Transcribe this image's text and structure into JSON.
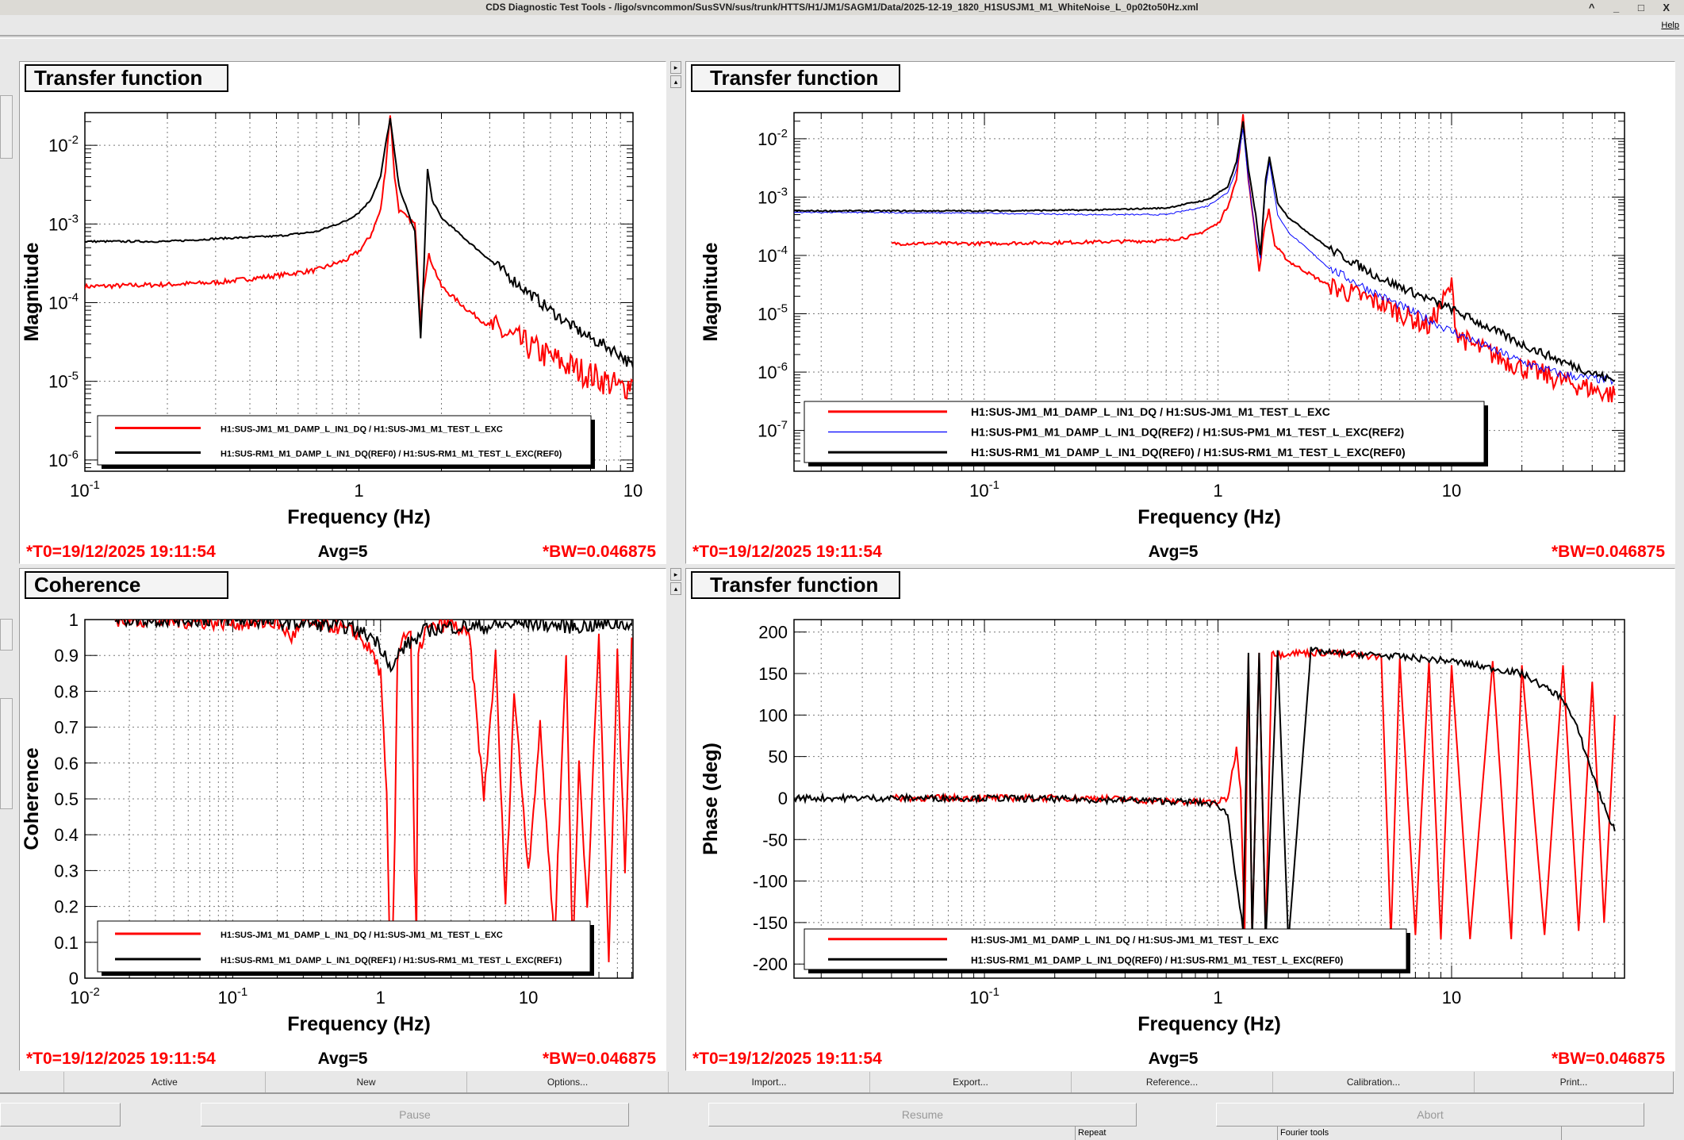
{
  "window": {
    "title": "CDS Diagnostic Test Tools - /ligo/svncommon/SusSVN/sus/trunk/HTTS/H1/JM1/SAGM1/Data/2025-12-19_1820_H1SUSJM1_M1_WhiteNoise_L_0p02to50Hz.xml",
    "controls": "^ _ □ X"
  },
  "menu": {
    "help": "Help"
  },
  "panels": [
    {
      "title": "Transfer function",
      "t0": "*T0=19/12/2025 19:11:54",
      "avg": "Avg=5",
      "bw": "*BW=0.046875"
    },
    {
      "title": "Transfer function",
      "t0": "*T0=19/12/2025 19:11:54",
      "avg": "Avg=5",
      "bw": "*BW=0.046875"
    },
    {
      "title": "Coherence",
      "t0": "*T0=19/12/2025 19:11:54",
      "avg": "Avg=5",
      "bw": "*BW=0.046875"
    },
    {
      "title": "Transfer function",
      "t0": "*T0=19/12/2025 19:11:54",
      "avg": "Avg=5",
      "bw": "*BW=0.046875"
    }
  ],
  "buttons": [
    "Active",
    "New",
    "Options...",
    "Import...",
    "Export...",
    "Reference...",
    "Calibration...",
    "Print..."
  ],
  "run_buttons": [
    "Pause",
    "Resume",
    "Abort"
  ],
  "status": [
    "Repeat",
    "Fourier tools"
  ],
  "chart_data": [
    {
      "type": "line",
      "xlabel": "Frequency (Hz)",
      "ylabel": "Magnitude",
      "xlog": true,
      "ylog": true,
      "xlim": [
        0.1,
        10
      ],
      "ylim": [
        7.2e-07,
        0.026
      ],
      "xticks": [
        0.1,
        1,
        10
      ],
      "yticks": [
        1e-06,
        1e-05,
        0.0001,
        0.001,
        0.01
      ],
      "series": [
        {
          "name": "H1:SUS-JM1_M1_DAMP_L_IN1_DQ / H1:SUS-JM1_M1_TEST_L_EXC",
          "color": "#ff0000",
          "x": [
            0.1,
            0.2,
            0.3,
            0.5,
            0.7,
            0.9,
            1.0,
            1.1,
            1.2,
            1.25,
            1.3,
            1.35,
            1.4,
            1.5,
            1.6,
            1.68,
            1.72,
            1.8,
            2,
            2.5,
            3,
            4,
            5,
            6,
            7,
            8,
            9,
            10
          ],
          "y": [
            0.00016,
            0.00017,
            0.00018,
            0.00022,
            0.00026,
            0.00035,
            0.00045,
            0.0007,
            0.0015,
            0.005,
            0.025,
            0.004,
            0.0015,
            0.0012,
            0.001,
            6e-05,
            0.00015,
            0.0004,
            0.00016,
            8e-05,
            5e-05,
            3e-05,
            2e-05,
            1.5e-05,
            1.2e-05,
            1e-05,
            8e-06,
            1e-05
          ]
        },
        {
          "name": "H1:SUS-RM1_M1_DAMP_L_IN1_DQ(REF0) / H1:SUS-RM1_M1_TEST_L_EXC(REF0)",
          "color": "#000000",
          "x": [
            0.1,
            0.2,
            0.3,
            0.5,
            0.7,
            0.9,
            1.0,
            1.1,
            1.2,
            1.25,
            1.3,
            1.35,
            1.4,
            1.5,
            1.6,
            1.68,
            1.72,
            1.78,
            1.85,
            2,
            2.5,
            3,
            4,
            5,
            6,
            7,
            8,
            9,
            10
          ],
          "y": [
            0.0006,
            0.0006,
            0.00065,
            0.0007,
            0.0008,
            0.0011,
            0.0014,
            0.002,
            0.004,
            0.01,
            0.022,
            0.008,
            0.003,
            0.0015,
            0.0008,
            3.5e-05,
            0.0002,
            0.005,
            0.002,
            0.0012,
            0.0006,
            0.00035,
            0.00015,
            8e-05,
            5e-05,
            3.5e-05,
            2.8e-05,
            2.2e-05,
            1.5e-05
          ]
        }
      ],
      "legend": "bottom"
    },
    {
      "type": "line",
      "xlabel": "Frequency (Hz)",
      "ylabel": "Magnitude",
      "xlog": true,
      "ylog": true,
      "xlim": [
        0.0153,
        55
      ],
      "ylim": [
        2e-08,
        0.028
      ],
      "xticks": [
        0.1,
        1,
        10
      ],
      "yticks": [
        1e-07,
        1e-06,
        1e-05,
        0.0001,
        0.001,
        0.01
      ],
      "series": [
        {
          "name": "H1:SUS-JM1_M1_DAMP_L_IN1_DQ / H1:SUS-JM1_M1_TEST_L_EXC",
          "color": "#ff0000",
          "x": [
            0.04,
            0.1,
            0.3,
            0.6,
            0.8,
            1.0,
            1.1,
            1.2,
            1.28,
            1.35,
            1.45,
            1.5,
            1.58,
            1.65,
            1.75,
            2,
            3,
            5,
            8,
            10,
            10.5,
            12,
            20,
            30,
            50
          ],
          "y": [
            0.00016,
            0.00016,
            0.00017,
            0.00018,
            0.00022,
            0.00035,
            0.0007,
            0.002,
            0.025,
            0.002,
            0.0002,
            5e-05,
            0.0003,
            0.0006,
            0.00015,
            8e-05,
            3e-05,
            1.5e-05,
            6e-06,
            3e-05,
            5e-06,
            3e-06,
            1.2e-06,
            7e-07,
            4e-07
          ]
        },
        {
          "name": "H1:SUS-PM1_M1_DAMP_L_IN1_DQ(REF2) / H1:SUS-PM1_M1_TEST_L_EXC(REF2)",
          "color": "#0000ff",
          "x": [
            0.0153,
            0.1,
            0.3,
            0.6,
            0.9,
            1.1,
            1.2,
            1.28,
            1.35,
            1.45,
            1.52,
            1.6,
            1.66,
            1.8,
            2,
            3,
            5,
            10,
            20,
            30,
            50
          ],
          "y": [
            0.00055,
            0.00053,
            0.0005,
            0.0005,
            0.0007,
            0.0012,
            0.003,
            0.015,
            0.002,
            0.0002,
            9e-05,
            0.0015,
            0.004,
            0.0005,
            0.00025,
            6e-05,
            2e-05,
            5e-06,
            1.5e-06,
            9e-07,
            7e-07
          ]
        },
        {
          "name": "H1:SUS-RM1_M1_DAMP_L_IN1_DQ(REF0) / H1:SUS-RM1_M1_TEST_L_EXC(REF0)",
          "color": "#000000",
          "x": [
            0.0153,
            0.1,
            0.3,
            0.6,
            0.9,
            1.1,
            1.2,
            1.28,
            1.35,
            1.45,
            1.52,
            1.6,
            1.66,
            1.8,
            2,
            3,
            5,
            10,
            20,
            30,
            50
          ],
          "y": [
            0.00058,
            0.00058,
            0.0006,
            0.00065,
            0.0009,
            0.0015,
            0.004,
            0.02,
            0.003,
            0.0005,
            0.0001,
            0.002,
            0.005,
            0.0008,
            0.00045,
            0.00013,
            4e-05,
            1.2e-05,
            3e-06,
            1.5e-06,
            7e-07
          ]
        }
      ],
      "legend": "bottom"
    },
    {
      "type": "line",
      "xlabel": "Frequency (Hz)",
      "ylabel": "Coherence",
      "xlog": true,
      "ylog": false,
      "xlim": [
        0.01,
        51
      ],
      "ylim": [
        0,
        1
      ],
      "xticks": [
        0.01,
        0.1,
        1,
        10
      ],
      "yticks": [
        0,
        0.1,
        0.2,
        0.3,
        0.4,
        0.5,
        0.6,
        0.7,
        0.8,
        0.9,
        1
      ],
      "series": [
        {
          "name": "H1:SUS-JM1_M1_DAMP_L_IN1_DQ / H1:SUS-JM1_M1_TEST_L_EXC",
          "color": "#ff0000",
          "x": [
            0.016,
            0.1,
            0.2,
            0.25,
            0.3,
            0.5,
            0.7,
            0.9,
            1.0,
            1.1,
            1.15,
            1.2,
            1.25,
            1.3,
            1.4,
            1.6,
            1.7,
            1.75,
            1.8,
            2,
            3,
            4,
            5,
            6,
            7,
            8,
            10,
            12,
            15,
            18,
            20,
            22,
            25,
            30,
            35,
            40,
            45,
            50
          ],
          "y": [
            1,
            0.99,
            0.99,
            0.95,
            0.99,
            0.98,
            0.96,
            0.9,
            0.85,
            0.5,
            0.1,
            0.05,
            0.4,
            0.9,
            0.95,
            0.97,
            0.3,
            0.1,
            0.9,
            0.97,
            0.99,
            0.95,
            0.5,
            0.9,
            0.2,
            0.8,
            0.3,
            0.7,
            0.1,
            0.9,
            0.05,
            0.6,
            0.2,
            0.95,
            0.05,
            0.9,
            0.3,
            0.95
          ]
        },
        {
          "name": "H1:SUS-RM1_M1_DAMP_L_IN1_DQ(REF1) / H1:SUS-RM1_M1_TEST_L_EXC(REF1)",
          "color": "#000000",
          "x": [
            0.016,
            0.1,
            0.3,
            0.6,
            0.9,
            1.1,
            1.2,
            1.3,
            1.5,
            1.8,
            2,
            3,
            5,
            10,
            20,
            50
          ],
          "y": [
            1,
            1,
            0.99,
            0.98,
            0.95,
            0.9,
            0.85,
            0.9,
            0.93,
            0.95,
            0.97,
            0.98,
            0.98,
            0.99,
            0.98,
            0.99
          ]
        }
      ],
      "legend": "bottom"
    },
    {
      "type": "line",
      "xlabel": "Frequency (Hz)",
      "ylabel": "Phase (deg)",
      "xlog": true,
      "ylog": false,
      "xlim": [
        0.0153,
        55
      ],
      "ylim": [
        -217,
        215
      ],
      "xticks": [
        0.1,
        1,
        10
      ],
      "yticks": [
        -200,
        -150,
        -100,
        -50,
        0,
        50,
        100,
        150,
        200
      ],
      "series": [
        {
          "name": "H1:SUS-JM1_M1_DAMP_L_IN1_DQ / H1:SUS-JM1_M1_TEST_L_EXC",
          "color": "#ff0000",
          "x": [
            0.04,
            0.1,
            0.3,
            0.5,
            0.8,
            1.0,
            1.1,
            1.2,
            1.25,
            1.3,
            1.35,
            1.4,
            1.5,
            1.6,
            1.7,
            1.8,
            2,
            3,
            4,
            5,
            5.5,
            6,
            7,
            8,
            9,
            10,
            12,
            15,
            18,
            20,
            25,
            30,
            35,
            40,
            45,
            50
          ],
          "y": [
            0,
            0,
            0,
            -3,
            -5,
            -5,
            0,
            60,
            10,
            -160,
            170,
            -170,
            175,
            -170,
            178,
            172,
            175,
            175,
            172,
            170,
            -170,
            168,
            -165,
            165,
            -170,
            160,
            -170,
            165,
            -170,
            160,
            -165,
            160,
            -160,
            140,
            -150,
            100
          ]
        },
        {
          "name": "H1:SUS-RM1_M1_DAMP_L_IN1_DQ(REF0) / H1:SUS-RM1_M1_TEST_L_EXC(REF0)",
          "color": "#000000",
          "x": [
            0.0153,
            0.1,
            0.3,
            0.5,
            0.8,
            1.0,
            1.1,
            1.2,
            1.28,
            1.35,
            1.4,
            1.5,
            1.6,
            1.8,
            2,
            2.5,
            3,
            5,
            10,
            20,
            30,
            35,
            40,
            45,
            50
          ],
          "y": [
            0,
            0,
            -2,
            -3,
            -5,
            -8,
            -20,
            -100,
            -160,
            175,
            -170,
            175,
            -175,
            178,
            -175,
            178,
            175,
            172,
            165,
            150,
            120,
            80,
            30,
            -10,
            -40
          ]
        }
      ],
      "legend": "bottom"
    }
  ]
}
